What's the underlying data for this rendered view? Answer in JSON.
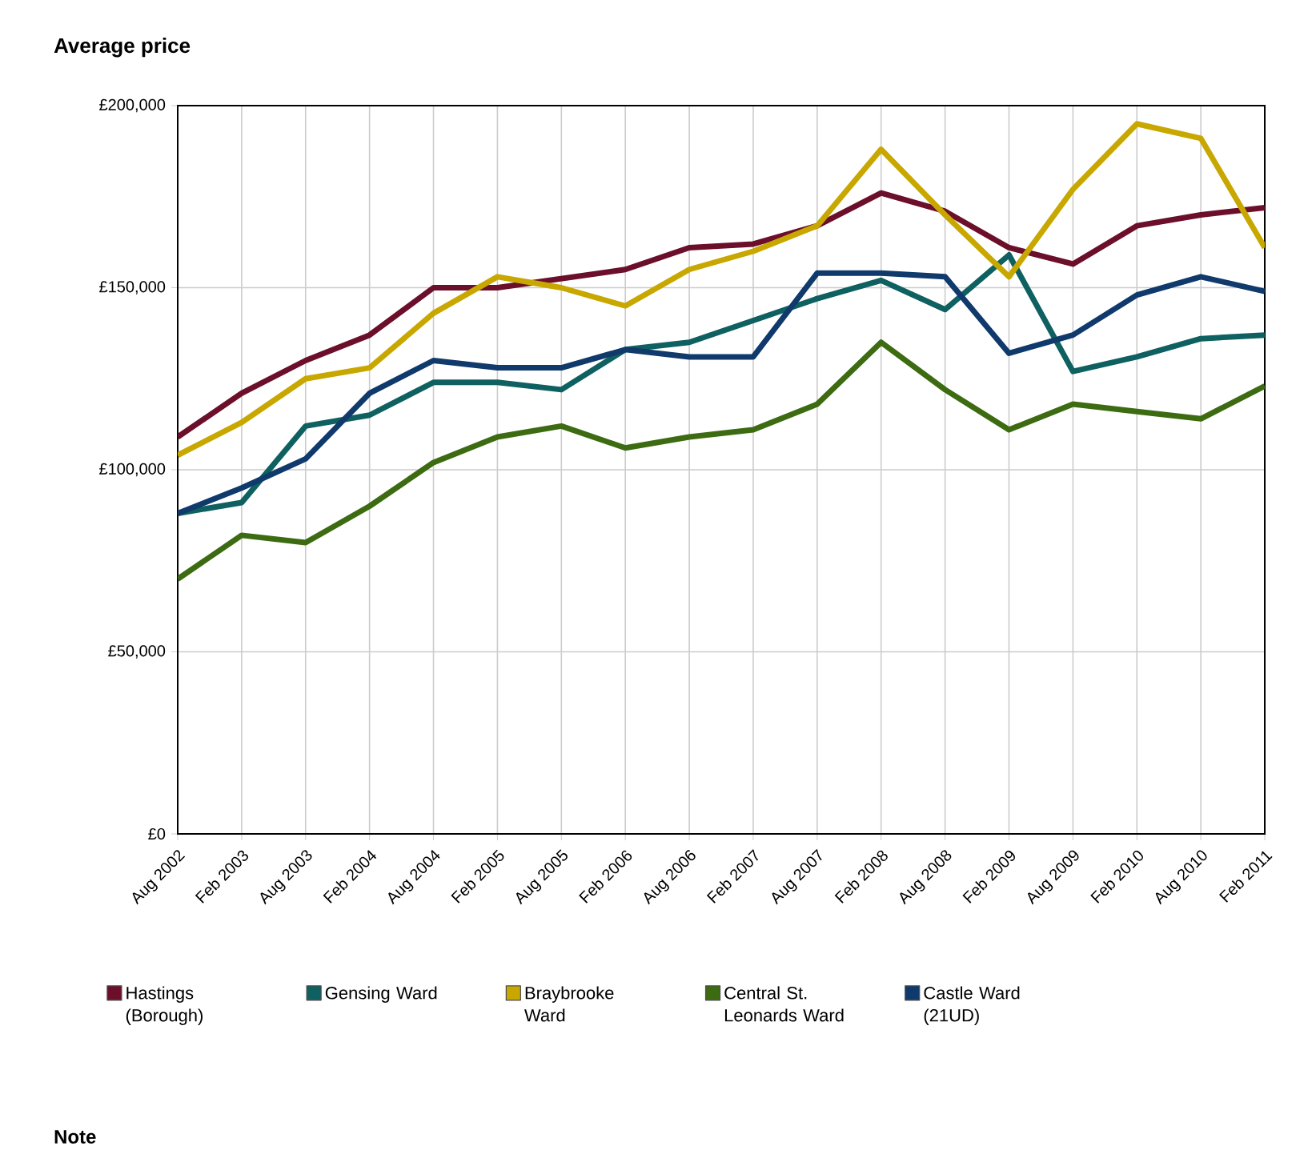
{
  "chart_data": {
    "type": "line",
    "title": "Average price",
    "categories": [
      "Aug 2002",
      "Feb 2003",
      "Aug 2003",
      "Feb 2004",
      "Aug 2004",
      "Feb 2005",
      "Aug 2005",
      "Feb 2006",
      "Aug 2006",
      "Feb 2007",
      "Aug 2007",
      "Feb 2008",
      "Aug 2008",
      "Feb 2009",
      "Aug 2009",
      "Feb 2010",
      "Aug 2010",
      "Feb 2011"
    ],
    "series": [
      {
        "name": "Hastings (Borough)",
        "color": "#6b0f2a",
        "values": [
          109000,
          121000,
          130000,
          137000,
          150000,
          150000,
          152500,
          155000,
          161000,
          162000,
          167000,
          176000,
          171000,
          161000,
          156500,
          167000,
          170000,
          172000
        ]
      },
      {
        "name": "Gensing Ward",
        "color": "#0f6060",
        "values": [
          88000,
          91000,
          112000,
          115000,
          124000,
          124000,
          122000,
          133000,
          135000,
          141000,
          147000,
          152000,
          144000,
          159000,
          127000,
          131000,
          136000,
          137000
        ]
      },
      {
        "name": "Braybrooke Ward",
        "color": "#c8a800",
        "values": [
          104000,
          113000,
          125000,
          128000,
          143000,
          153000,
          150000,
          145000,
          155000,
          160000,
          167000,
          188000,
          170000,
          153000,
          177000,
          195000,
          191000,
          161000
        ]
      },
      {
        "name": "Central St. Leonards Ward",
        "color": "#3d6b12",
        "values": [
          70000,
          82000,
          80000,
          90000,
          102000,
          109000,
          112000,
          106000,
          109000,
          111000,
          118000,
          135000,
          122000,
          111000,
          118000,
          116000,
          114000,
          123000
        ]
      },
      {
        "name": "Castle Ward (21UD)",
        "color": "#0f3a6b",
        "values": [
          88000,
          95000,
          103000,
          121000,
          130000,
          128000,
          128000,
          133000,
          131000,
          131000,
          154000,
          154000,
          153000,
          132000,
          137000,
          148000,
          153000,
          149000
        ]
      }
    ],
    "ylim": [
      0,
      200000
    ],
    "yticks": [
      {
        "value": 0,
        "label": "£0"
      },
      {
        "value": 50000,
        "label": "£50,000"
      },
      {
        "value": 100000,
        "label": "£100,000"
      },
      {
        "value": 150000,
        "label": "£150,000"
      },
      {
        "value": 200000,
        "label": "£200,000"
      }
    ],
    "grid": true,
    "legend": "bottom",
    "marker": "none",
    "line_style": "solid",
    "annotations": [
      "Note"
    ]
  }
}
